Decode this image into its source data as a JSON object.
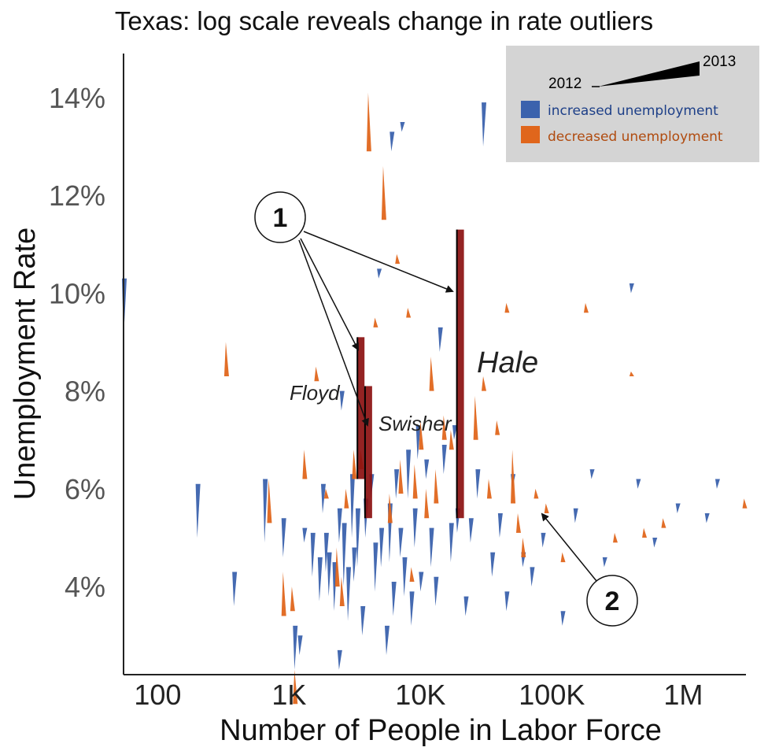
{
  "chart_data": {
    "type": "scatter",
    "title": "Texas: log scale reveals change in rate outliers",
    "xlabel": "Number of People in Labor Force",
    "ylabel": "Unemployment Rate",
    "x_scale": "log",
    "xlim": [
      55,
      3000000
    ],
    "ylim": [
      2.2,
      14.9
    ],
    "x_ticks": [
      {
        "value": 100,
        "label": "100"
      },
      {
        "value": 1000,
        "label": "1K"
      },
      {
        "value": 10000,
        "label": "10K"
      },
      {
        "value": 100000,
        "label": "100K"
      },
      {
        "value": 1000000,
        "label": "1M"
      }
    ],
    "y_ticks": [
      {
        "value": 4,
        "label": "4%"
      },
      {
        "value": 6,
        "label": "6%"
      },
      {
        "value": 8,
        "label": "8%"
      },
      {
        "value": 10,
        "label": "10%"
      },
      {
        "value": 12,
        "label": "12%"
      },
      {
        "value": 14,
        "label": "14%"
      }
    ],
    "grid": false,
    "legend_position": "top-right",
    "legend": {
      "year_start": "2012",
      "year_end": "2013",
      "increased": "increased unemployment",
      "decreased": "decreased unemployment"
    },
    "colors": {
      "increased": "#3b62ad",
      "decreased": "#e0661c",
      "highlight": "#8b1010",
      "legend_bg": "#d4d4d4",
      "increased_text": "#1d3f88",
      "decreased_text": "#b04b0f"
    },
    "highlighted": [
      {
        "name": "Hale",
        "x": 20000,
        "y_2012": 5.4,
        "y_2013": 11.3
      },
      {
        "name": "Floyd",
        "x": 3500,
        "y_2012": 6.2,
        "y_2013": 9.1
      },
      {
        "name": "Swisher",
        "x": 4000,
        "y_2012": 5.4,
        "y_2013": 8.1
      }
    ],
    "annotations": [
      {
        "label": "1"
      },
      {
        "label": "2"
      }
    ],
    "series": [
      {
        "name": "increased unemployment",
        "points": [
          [
            55,
            9.1,
            10.3
          ],
          [
            200,
            5.0,
            6.1
          ],
          [
            380,
            3.6,
            4.3
          ],
          [
            650,
            4.9,
            6.2
          ],
          [
            900,
            4.6,
            5.4
          ],
          [
            1100,
            2.3,
            3.2
          ],
          [
            1200,
            2.6,
            3.0
          ],
          [
            1300,
            4.9,
            5.2
          ],
          [
            1500,
            4.2,
            5.1
          ],
          [
            1700,
            3.7,
            4.6
          ],
          [
            1800,
            5.5,
            6.1
          ],
          [
            1900,
            4.3,
            5.1
          ],
          [
            2000,
            3.8,
            4.7
          ],
          [
            2200,
            3.5,
            4.5
          ],
          [
            2400,
            4.9,
            5.6
          ],
          [
            2600,
            4.0,
            5.3
          ],
          [
            2800,
            3.3,
            4.4
          ],
          [
            3000,
            5.0,
            6.3
          ],
          [
            3100,
            4.1,
            4.8
          ],
          [
            3300,
            4.4,
            5.6
          ],
          [
            3600,
            3.0,
            3.6
          ],
          [
            3800,
            5.0,
            5.8
          ],
          [
            4200,
            5.8,
            6.3
          ],
          [
            4500,
            3.9,
            4.9
          ],
          [
            5000,
            4.4,
            5.2
          ],
          [
            5500,
            2.6,
            3.2
          ],
          [
            5800,
            4.5,
            5.7
          ],
          [
            6200,
            3.4,
            4.1
          ],
          [
            6500,
            5.8,
            6.4
          ],
          [
            7000,
            4.6,
            5.2
          ],
          [
            7500,
            3.8,
            4.6
          ],
          [
            8000,
            5.8,
            6.8
          ],
          [
            8500,
            3.2,
            3.9
          ],
          [
            9000,
            4.8,
            5.6
          ],
          [
            9500,
            6.6,
            7.3
          ],
          [
            10000,
            3.9,
            4.3
          ],
          [
            11000,
            6.2,
            6.6
          ],
          [
            12000,
            4.4,
            5.2
          ],
          [
            13000,
            3.6,
            4.2
          ],
          [
            14000,
            8.8,
            9.3
          ],
          [
            15000,
            6.3,
            6.9
          ],
          [
            17000,
            4.5,
            5.3
          ],
          [
            19000,
            5.1,
            5.6
          ],
          [
            22000,
            3.4,
            3.8
          ],
          [
            24000,
            4.9,
            5.4
          ],
          [
            27000,
            5.8,
            6.4
          ],
          [
            30000,
            13.0,
            13.9
          ],
          [
            35000,
            4.2,
            4.7
          ],
          [
            40000,
            5.0,
            5.5
          ],
          [
            45000,
            3.5,
            3.9
          ],
          [
            50000,
            6.0,
            6.3
          ],
          [
            60000,
            4.4,
            4.7
          ],
          [
            70000,
            4.0,
            4.4
          ],
          [
            85000,
            4.8,
            5.1
          ],
          [
            120000,
            3.2,
            3.5
          ],
          [
            150000,
            5.3,
            5.6
          ],
          [
            200000,
            6.2,
            6.4
          ],
          [
            250000,
            4.4,
            4.6
          ],
          [
            400000,
            10.0,
            10.2
          ],
          [
            450000,
            6.0,
            6.2
          ],
          [
            600000,
            4.8,
            5.0
          ],
          [
            900000,
            5.5,
            5.7
          ],
          [
            1500000,
            5.3,
            5.5
          ],
          [
            1800000,
            6.0,
            6.2
          ],
          [
            6000,
            12.9,
            13.3
          ],
          [
            7200,
            13.3,
            13.5
          ],
          [
            2400,
            2.3,
            2.7
          ],
          [
            2500,
            7.6,
            8.0
          ],
          [
            18000,
            7.0,
            7.3
          ],
          [
            4800,
            10.3,
            10.5
          ]
        ]
      },
      {
        "name": "decreased unemployment",
        "points": [
          [
            330,
            9.0,
            8.3
          ],
          [
            700,
            6.2,
            5.3
          ],
          [
            900,
            4.3,
            3.4
          ],
          [
            1100,
            2.3,
            1.6
          ],
          [
            1300,
            6.8,
            6.2
          ],
          [
            1600,
            8.5,
            8.2
          ],
          [
            1900,
            6.0,
            5.8
          ],
          [
            2300,
            4.8,
            4.0
          ],
          [
            2500,
            4.2,
            3.6
          ],
          [
            3100,
            6.8,
            6.2
          ],
          [
            4000,
            14.1,
            12.9
          ],
          [
            4500,
            9.5,
            9.3
          ],
          [
            5200,
            12.6,
            11.5
          ],
          [
            5800,
            5.9,
            5.3
          ],
          [
            6600,
            10.8,
            10.6
          ],
          [
            7000,
            6.6,
            5.9
          ],
          [
            8000,
            9.7,
            9.5
          ],
          [
            9000,
            6.5,
            5.8
          ],
          [
            10000,
            7.4,
            6.8
          ],
          [
            11000,
            6.0,
            5.4
          ],
          [
            12000,
            8.7,
            8.0
          ],
          [
            13000,
            6.4,
            5.7
          ],
          [
            15000,
            7.5,
            7.0
          ],
          [
            17000,
            7.2,
            6.8
          ],
          [
            26000,
            7.9,
            7.0
          ],
          [
            30000,
            8.3,
            8.0
          ],
          [
            33000,
            6.2,
            5.8
          ],
          [
            38000,
            7.4,
            7.1
          ],
          [
            45000,
            9.8,
            9.6
          ],
          [
            50000,
            6.8,
            5.7
          ],
          [
            55000,
            5.5,
            5.1
          ],
          [
            60000,
            5.0,
            4.6
          ],
          [
            75000,
            6.0,
            5.8
          ],
          [
            90000,
            5.7,
            5.5
          ],
          [
            120000,
            4.7,
            4.5
          ],
          [
            180000,
            9.8,
            9.6
          ],
          [
            300000,
            5.1,
            4.9
          ],
          [
            400000,
            8.4,
            8.3
          ],
          [
            500000,
            5.2,
            5.0
          ],
          [
            700000,
            5.4,
            5.2
          ],
          [
            2900000,
            5.8,
            5.6
          ],
          [
            1050,
            4.0,
            3.5
          ],
          [
            2700,
            6.0,
            5.6
          ],
          [
            3500,
            6.8,
            6.4
          ],
          [
            8500,
            4.4,
            4.1
          ]
        ]
      }
    ]
  }
}
